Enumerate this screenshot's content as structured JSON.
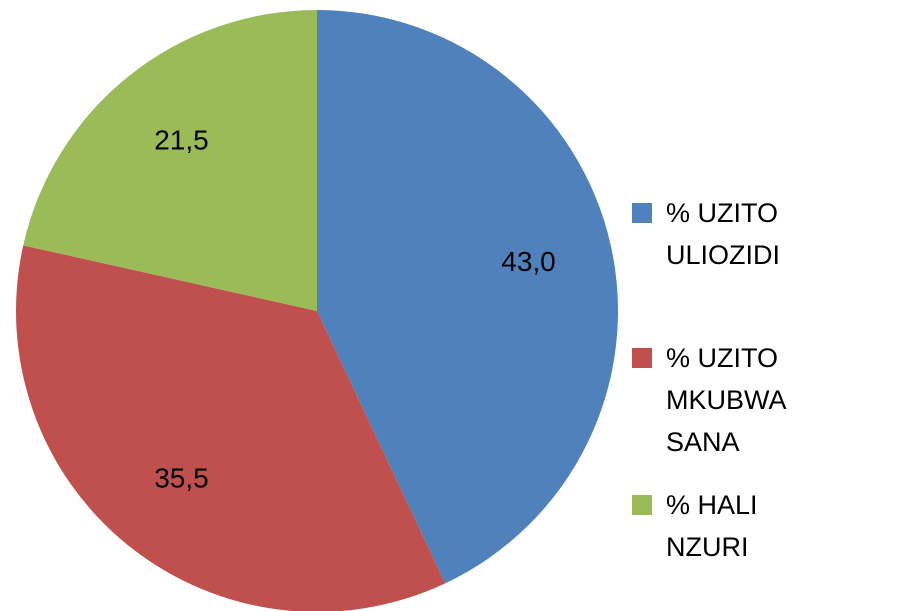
{
  "chart_data": {
    "type": "pie",
    "categories": [
      "% UZITO ULIOZIDI",
      "% UZITO MKUBWA SANA",
      "% HALI NZURI"
    ],
    "values": [
      43.0,
      35.5,
      21.5
    ],
    "value_labels": [
      "43,0",
      "35,5",
      "21,5"
    ],
    "colors": [
      "#4f81bd",
      "#c0504d",
      "#9bbb59"
    ],
    "legend": "right"
  }
}
